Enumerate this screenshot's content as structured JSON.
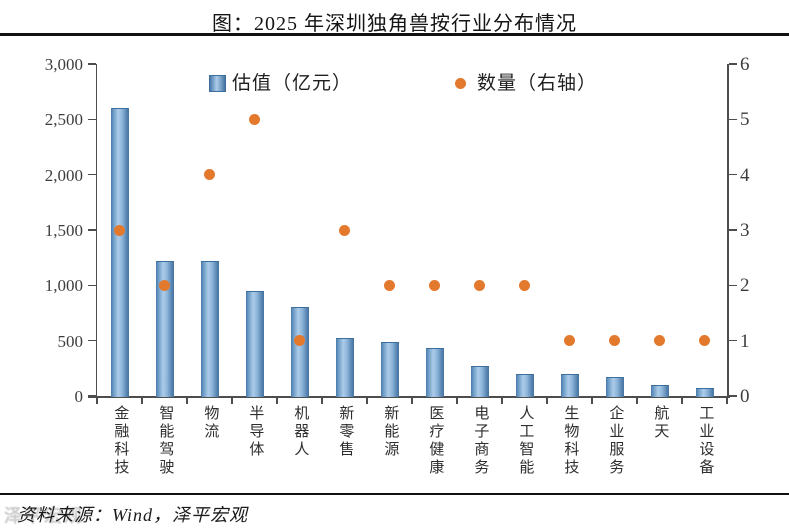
{
  "page": {
    "title": "图：2025 年深圳独角兽按行业分布情况",
    "source": "资料来源：Wind，泽平宏观",
    "watermark": "泽平宏观"
  },
  "colors": {
    "bar_edge": "#4a7aab",
    "bar_highlight": "#accce9",
    "dot": "#e3792d",
    "axis": "#4d4d4d",
    "text": "#2e2e2e",
    "divider": "#111111"
  },
  "legend": [
    {
      "label": "估值（亿元）",
      "marker": "blue-square"
    },
    {
      "label": "数量（右轴）",
      "marker": "orange-circle"
    }
  ],
  "chart_data": {
    "type": "combo-bar-scatter",
    "title": "图：2025 年深圳独角兽按行业分布情况",
    "categories": [
      "金融科技",
      "智能驾驶",
      "物流",
      "半导体",
      "机器人",
      "新零售",
      "新能源",
      "医疗健康",
      "电子商务",
      "人工智能",
      "生物科技",
      "企业服务",
      "航天",
      "工业设备"
    ],
    "series": [
      {
        "name": "估值（亿元）",
        "type": "bar",
        "axis": "left",
        "values": [
          2600,
          1220,
          1220,
          950,
          800,
          520,
          490,
          430,
          270,
          195,
          200,
          170,
          95,
          70
        ]
      },
      {
        "name": "数量（右轴）",
        "type": "scatter",
        "axis": "right",
        "values": [
          3,
          2,
          4,
          5,
          1,
          3,
          2,
          2,
          2,
          2,
          1,
          1,
          1,
          1
        ]
      }
    ],
    "left_axis": {
      "min": 0,
      "max": 3000,
      "step": 500,
      "tick_values": [
        0,
        500,
        1000,
        1500,
        2000,
        2500,
        3000
      ],
      "tick_labels": [
        "0",
        "500",
        "1,000",
        "1,500",
        "2,000",
        "2,500",
        "3,000"
      ]
    },
    "right_axis": {
      "min": 0,
      "max": 6,
      "step": 1,
      "tick_values": [
        0,
        1,
        2,
        3,
        4,
        5,
        6
      ],
      "tick_labels": [
        "0",
        "1",
        "2",
        "3",
        "4",
        "5",
        "6"
      ]
    },
    "grid": false,
    "legend_position": "top-inside"
  }
}
